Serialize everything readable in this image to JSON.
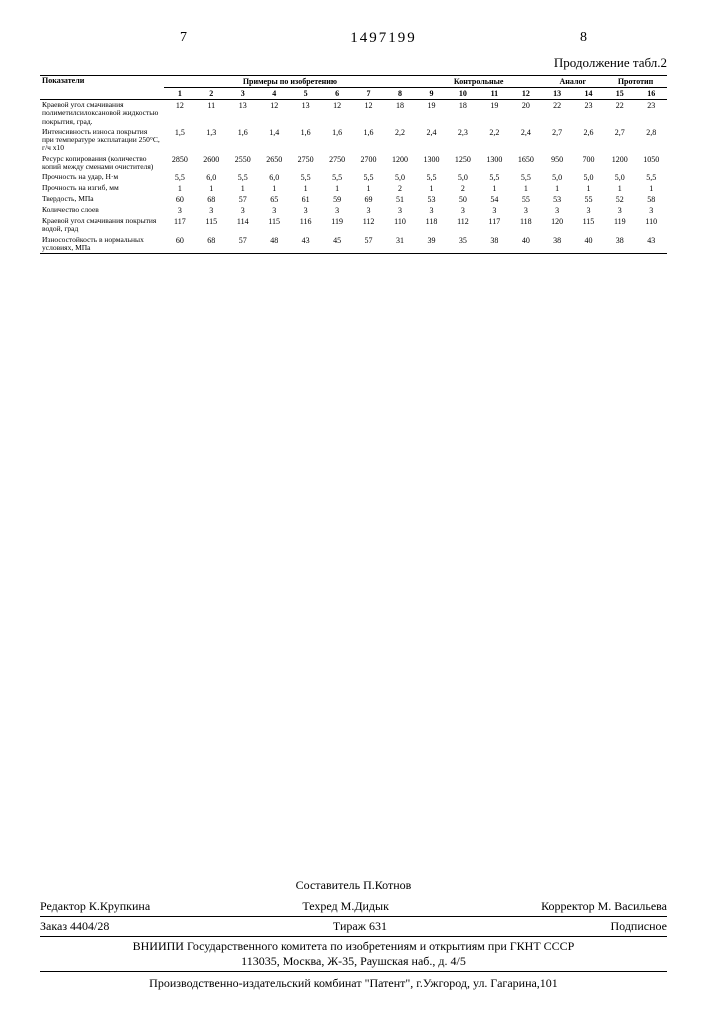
{
  "header": {
    "left_page": "7",
    "patent_number": "1497199",
    "right_page": "8",
    "continuation": "Продолжение табл.2"
  },
  "table": {
    "row_header_label": "Показатели",
    "group_headers": {
      "g1": "Примеры по изобретению",
      "g2": "Контрольные",
      "g3": "Аналог",
      "g4": "Прототип"
    },
    "col_numbers": [
      "1",
      "2",
      "3",
      "4",
      "5",
      "6",
      "7",
      "8",
      "9",
      "10",
      "11",
      "12",
      "13",
      "14",
      "15",
      "16"
    ],
    "rows": [
      {
        "label": "Краевой угол смачивания полиметилсилоксановой жидкостью покрытия, град.",
        "cells": [
          "12",
          "11",
          "13",
          "12",
          "13",
          "12",
          "12",
          "18",
          "19",
          "18",
          "19",
          "20",
          "22",
          "23",
          "22",
          "23"
        ]
      },
      {
        "label": "Интенсивность износа покрытия при температуре эксплатации 250°C, г/ч x10",
        "cells": [
          "1,5",
          "1,3",
          "1,6",
          "1,4",
          "1,6",
          "1,6",
          "1,6",
          "2,2",
          "2,4",
          "2,3",
          "2,2",
          "2,4",
          "2,7",
          "2,6",
          "2,7",
          "2,8"
        ]
      },
      {
        "label": "Ресурс копирования (количество копий между сменами очистителя)",
        "cells": [
          "2850",
          "2600",
          "2550",
          "2650",
          "2750",
          "2750",
          "2700",
          "1200",
          "1300",
          "1250",
          "1300",
          "1650",
          "950",
          "700",
          "1200",
          "1050"
        ]
      },
      {
        "label": "Прочность на удар, Н·м",
        "cells": [
          "5,5",
          "6,0",
          "5,5",
          "6,0",
          "5,5",
          "5,5",
          "5,5",
          "5,0",
          "5,5",
          "5,0",
          "5,5",
          "5,5",
          "5,0",
          "5,0",
          "5,0",
          "5,5"
        ]
      },
      {
        "label": "Прочность на изгиб, мм",
        "cells": [
          "1",
          "1",
          "1",
          "1",
          "1",
          "1",
          "1",
          "2",
          "1",
          "2",
          "1",
          "1",
          "1",
          "1",
          "1",
          "1"
        ]
      },
      {
        "label": "Твердость, МПа",
        "cells": [
          "60",
          "68",
          "57",
          "65",
          "61",
          "59",
          "69",
          "51",
          "53",
          "50",
          "54",
          "55",
          "53",
          "55",
          "52",
          "58"
        ]
      },
      {
        "label": "Количество слоев",
        "cells": [
          "3",
          "3",
          "3",
          "3",
          "3",
          "3",
          "3",
          "3",
          "3",
          "3",
          "3",
          "3",
          "3",
          "3",
          "3",
          "3"
        ]
      },
      {
        "label": "Краевой угол смачивания покрытия водой, град",
        "cells": [
          "117",
          "115",
          "114",
          "115",
          "116",
          "119",
          "112",
          "110",
          "118",
          "112",
          "117",
          "118",
          "120",
          "115",
          "119",
          "110"
        ]
      },
      {
        "label": "Износостойкость в нормальных условиях, МПа",
        "cells": [
          "60",
          "68",
          "57",
          "48",
          "43",
          "45",
          "57",
          "31",
          "39",
          "35",
          "38",
          "40",
          "38",
          "40",
          "38",
          "43"
        ]
      }
    ]
  },
  "footer": {
    "compiler": "Составитель П.Котнов",
    "editor": "Редактор К.Крупкина",
    "techred": "Техред М.Дидык",
    "corrector": "Корректор М. Васильева",
    "order": "Заказ 4404/28",
    "tirage": "Тираж 631",
    "subscription": "Подписное",
    "org1": "ВНИИПИ Государственного комитета по изобретениям и открытиям при ГКНТ СССР",
    "org1_addr": "113035, Москва, Ж-35, Раушская наб., д. 4/5",
    "org2": "Производственно-издательский комбинат \"Патент\", г.Ужгород, ул. Гагарина,101"
  }
}
